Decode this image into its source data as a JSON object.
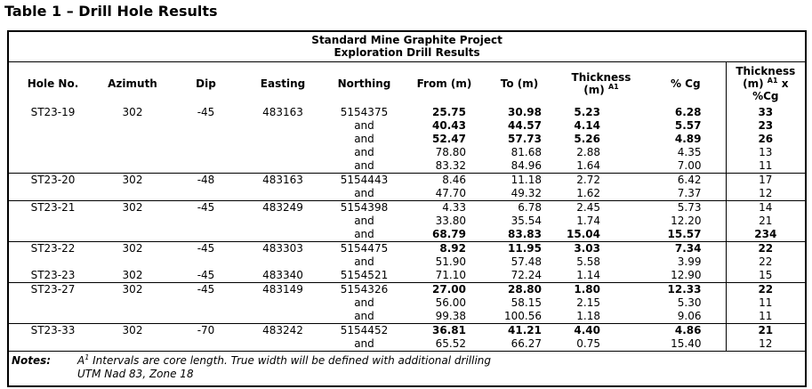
{
  "page_title": "Table 1 – Drill Hole Results",
  "table": {
    "title_line1": "Standard Mine Graphite Project",
    "title_line2": "Exploration Drill Results",
    "and_label": "and",
    "headers": {
      "hole": "Hole No.",
      "azimuth": "Azimuth",
      "dip": "Dip",
      "easting": "Easting",
      "northing": "Northing",
      "from": "From (m)",
      "to": "To (m)",
      "thickness_line1": "Thickness",
      "thickness_line2": "(m)",
      "thickness_sup": "A1",
      "cg": "% Cg",
      "product_line1": "Thickness",
      "product_line2": "(m)",
      "product_sup": "A1",
      "product_x": "x",
      "product_line3": "%Cg"
    },
    "sections": [
      {
        "holes": [
          {
            "hole": "ST23-19",
            "azimuth": "302",
            "dip": "-45",
            "easting": "483163",
            "northing": "5154375",
            "intervals": [
              {
                "from": "25.75",
                "to": "30.98",
                "thickness": "5.23",
                "cg": "6.28",
                "product": "33",
                "bold": true
              },
              {
                "from": "40.43",
                "to": "44.57",
                "thickness": "4.14",
                "cg": "5.57",
                "product": "23",
                "bold": true
              },
              {
                "from": "52.47",
                "to": "57.73",
                "thickness": "5.26",
                "cg": "4.89",
                "product": "26",
                "bold": true
              },
              {
                "from": "78.80",
                "to": "81.68",
                "thickness": "2.88",
                "cg": "4.35",
                "product": "13",
                "bold": false
              },
              {
                "from": "83.32",
                "to": "84.96",
                "thickness": "1.64",
                "cg": "7.00",
                "product": "11",
                "bold": false
              }
            ]
          }
        ]
      },
      {
        "holes": [
          {
            "hole": "ST23-20",
            "azimuth": "302",
            "dip": "-48",
            "easting": "483163",
            "northing": "5154443",
            "intervals": [
              {
                "from": "8.46",
                "to": "11.18",
                "thickness": "2.72",
                "cg": "6.42",
                "product": "17",
                "bold": false
              },
              {
                "from": "47.70",
                "to": "49.32",
                "thickness": "1.62",
                "cg": "7.37",
                "product": "12",
                "bold": false
              }
            ]
          }
        ]
      },
      {
        "holes": [
          {
            "hole": "ST23-21",
            "azimuth": "302",
            "dip": "-45",
            "easting": "483249",
            "northing": "5154398",
            "intervals": [
              {
                "from": "4.33",
                "to": "6.78",
                "thickness": "2.45",
                "cg": "5.73",
                "product": "14",
                "bold": false
              },
              {
                "from": "33.80",
                "to": "35.54",
                "thickness": "1.74",
                "cg": "12.20",
                "product": "21",
                "bold": false
              },
              {
                "from": "68.79",
                "to": "83.83",
                "thickness": "15.04",
                "cg": "15.57",
                "product": "234",
                "bold": true
              }
            ]
          }
        ]
      },
      {
        "holes": [
          {
            "hole": "ST23-22",
            "azimuth": "302",
            "dip": "-45",
            "easting": "483303",
            "northing": "5154475",
            "intervals": [
              {
                "from": "8.92",
                "to": "11.95",
                "thickness": "3.03",
                "cg": "7.34",
                "product": "22",
                "bold": true
              },
              {
                "from": "51.90",
                "to": "57.48",
                "thickness": "5.58",
                "cg": "3.99",
                "product": "22",
                "bold": false
              }
            ]
          },
          {
            "hole": "ST23-23",
            "azimuth": "302",
            "dip": "-45",
            "easting": "483340",
            "northing": "5154521",
            "intervals": [
              {
                "from": "71.10",
                "to": "72.24",
                "thickness": "1.14",
                "cg": "12.90",
                "product": "15",
                "bold": false
              }
            ]
          }
        ]
      },
      {
        "holes": [
          {
            "hole": "ST23-27",
            "azimuth": "302",
            "dip": "-45",
            "easting": "483149",
            "northing": "5154326",
            "intervals": [
              {
                "from": "27.00",
                "to": "28.80",
                "thickness": "1.80",
                "cg": "12.33",
                "product": "22",
                "bold": true
              },
              {
                "from": "56.00",
                "to": "58.15",
                "thickness": "2.15",
                "cg": "5.30",
                "product": "11",
                "bold": false
              },
              {
                "from": "99.38",
                "to": "100.56",
                "thickness": "1.18",
                "cg": "9.06",
                "product": "11",
                "bold": false
              }
            ]
          }
        ]
      },
      {
        "holes": [
          {
            "hole": "ST23-33",
            "azimuth": "302",
            "dip": "-70",
            "easting": "483242",
            "northing": "5154452",
            "intervals": [
              {
                "from": "36.81",
                "to": "41.21",
                "thickness": "4.40",
                "cg": "4.86",
                "product": "21",
                "bold": true
              },
              {
                "from": "65.52",
                "to": "66.27",
                "thickness": "0.75",
                "cg": "15.40",
                "product": "12",
                "bold": false
              }
            ]
          }
        ]
      }
    ]
  },
  "notes": {
    "label": "Notes:",
    "line1_pre": "A",
    "line1_sup": "1",
    "line1_post": " Intervals are core length. True width will be defined with additional drilling",
    "line2": "UTM Nad 83, Zone 18"
  }
}
